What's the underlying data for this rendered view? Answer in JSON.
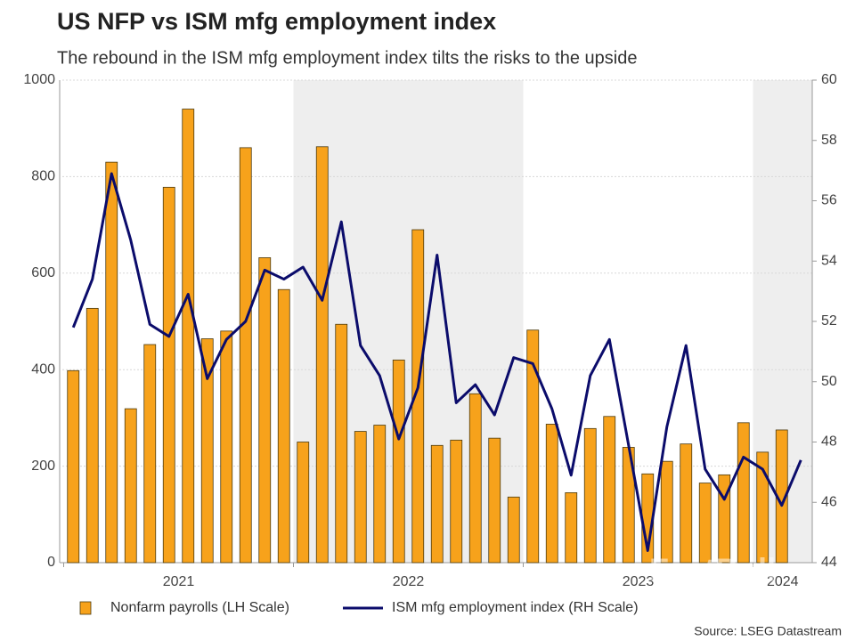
{
  "chart_data": {
    "type": "combo",
    "title": "US NFP vs ISM mfg employment index",
    "subtitle": "The rebound in the ISM mfg employment index tilts the risks to the upside",
    "categories": [
      null,
      null,
      null,
      null,
      null,
      null,
      null,
      null,
      null,
      null,
      null,
      null,
      null,
      null,
      null,
      null,
      null,
      null,
      null,
      null,
      null,
      null,
      null,
      null,
      null,
      null,
      null,
      null,
      null,
      null,
      null,
      null,
      null,
      null,
      null,
      null,
      null,
      null,
      null
    ],
    "year_labels": [
      "2021",
      "2022",
      "2023",
      "2024"
    ],
    "series": [
      {
        "name": "Nonfarm payrolls (LH Scale)",
        "type": "bar",
        "axis": "y",
        "color": "#f7a21b",
        "values": [
          398,
          527,
          830,
          319,
          452,
          778,
          940,
          464,
          480,
          860,
          632,
          566,
          250,
          862,
          494,
          272,
          285,
          420,
          690,
          243,
          254,
          350,
          258,
          136,
          482,
          287,
          145,
          278,
          303,
          239,
          184,
          210,
          246,
          165,
          182,
          290,
          229,
          275,
          null
        ]
      },
      {
        "name": "ISM mfg employment index (RH Scale)",
        "type": "line",
        "axis": "y2",
        "color": "#0b0c6b",
        "values": [
          51.8,
          53.4,
          56.9,
          54.7,
          51.9,
          51.5,
          52.9,
          50.1,
          51.4,
          52.0,
          53.7,
          53.4,
          53.8,
          52.7,
          55.3,
          51.2,
          50.2,
          48.1,
          49.8,
          54.2,
          49.3,
          49.9,
          48.9,
          50.8,
          50.6,
          49.1,
          46.9,
          50.2,
          51.4,
          47.9,
          44.4,
          48.5,
          51.2,
          47.1,
          46.1,
          47.5,
          47.1,
          45.9,
          47.4
        ]
      }
    ],
    "ylim": [
      0,
      1000
    ],
    "yticks": [
      0,
      200,
      400,
      600,
      800,
      1000
    ],
    "y2lim": [
      44,
      60
    ],
    "y2ticks": [
      44,
      46,
      48,
      50,
      52,
      54,
      56,
      58,
      60
    ],
    "grid": true,
    "legend": "bottom",
    "source": "Source: LSEG Datastream",
    "watermark": "FastBull"
  }
}
